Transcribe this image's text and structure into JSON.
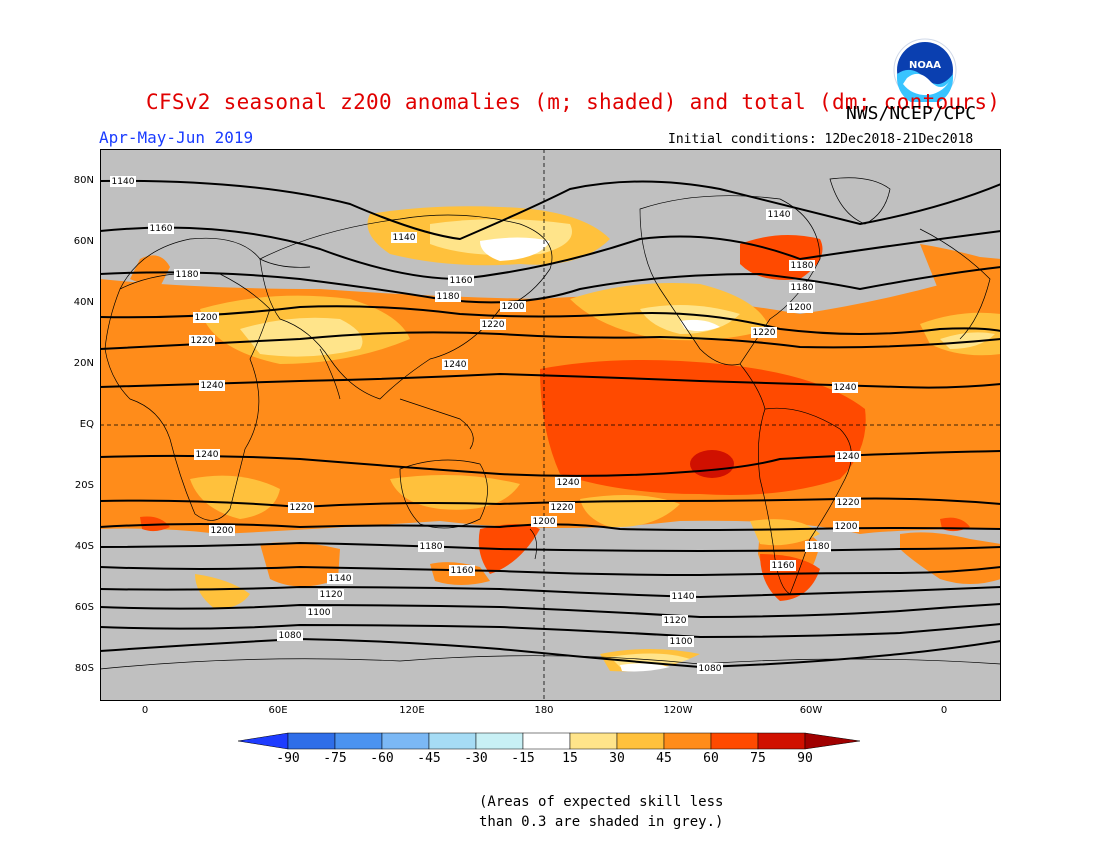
{
  "header": {
    "title": "CFSv2 seasonal z200 anomalies (m; shaded) and total (dm; contours)",
    "agency": "NWS/NCEP/CPC",
    "season": "Apr-May-Jun 2019",
    "initial_conditions": "Initial conditions: 12Dec2018-21Dec2018",
    "logo_text": "NOAA"
  },
  "axes": {
    "lat_labels": [
      "80N",
      "60N",
      "40N",
      "20N",
      "EQ",
      "20S",
      "40S",
      "60S",
      "80S"
    ],
    "lon_labels": [
      "0",
      "60E",
      "120E",
      "180",
      "120W",
      "60W",
      "0"
    ]
  },
  "colorbar": {
    "ticks": [
      "-90",
      "-75",
      "-60",
      "-45",
      "-30",
      "-15",
      "15",
      "30",
      "45",
      "60",
      "75",
      "90"
    ],
    "colors": [
      "#1e3cff",
      "#2f6ee8",
      "#4b93f0",
      "#7bb8f5",
      "#a6dcf5",
      "#c8f0f5",
      "#ffffff",
      "#ffe48a",
      "#ffc13c",
      "#ff8c1a",
      "#ff4a00",
      "#d01000"
    ]
  },
  "note": {
    "line1": "(Areas of expected skill less",
    "line2": "than 0.3 are shaded in grey.)"
  },
  "contour_labels": [
    {
      "id": "c1140a",
      "text": "1140"
    },
    {
      "id": "c1160a",
      "text": "1160"
    },
    {
      "id": "c1140b",
      "text": "1140"
    },
    {
      "id": "c1140c",
      "text": "1140"
    },
    {
      "id": "c1180a",
      "text": "1180"
    },
    {
      "id": "c1160b",
      "text": "1160"
    },
    {
      "id": "c1180b",
      "text": "1180"
    },
    {
      "id": "c1180c",
      "text": "1180"
    },
    {
      "id": "c1180d",
      "text": "1180"
    },
    {
      "id": "c1200a",
      "text": "1200"
    },
    {
      "id": "c1200b",
      "text": "1200"
    },
    {
      "id": "c1200c",
      "text": "1200"
    },
    {
      "id": "c1220a",
      "text": "1220"
    },
    {
      "id": "c1220b",
      "text": "1220"
    },
    {
      "id": "c1220c",
      "text": "1220"
    },
    {
      "id": "c1240a",
      "text": "1240"
    },
    {
      "id": "c1240b",
      "text": "1240"
    },
    {
      "id": "c1240c",
      "text": "1240"
    },
    {
      "id": "c1240d",
      "text": "1240"
    },
    {
      "id": "c1240e",
      "text": "1240"
    },
    {
      "id": "c1240f",
      "text": "1240"
    },
    {
      "id": "c1220d",
      "text": "1220"
    },
    {
      "id": "c1220e",
      "text": "1220"
    },
    {
      "id": "c1220f",
      "text": "1220"
    },
    {
      "id": "c1200d",
      "text": "1200"
    },
    {
      "id": "c1200e",
      "text": "1200"
    },
    {
      "id": "c1200f",
      "text": "1200"
    },
    {
      "id": "c1180e",
      "text": "1180"
    },
    {
      "id": "c1180f",
      "text": "1180"
    },
    {
      "id": "c1160c",
      "text": "1160"
    },
    {
      "id": "c1160d",
      "text": "1160"
    },
    {
      "id": "c1140d",
      "text": "1140"
    },
    {
      "id": "c1140e",
      "text": "1140"
    },
    {
      "id": "c1120a",
      "text": "1120"
    },
    {
      "id": "c1120b",
      "text": "1120"
    },
    {
      "id": "c1100a",
      "text": "1100"
    },
    {
      "id": "c1100b",
      "text": "1100"
    },
    {
      "id": "c1080a",
      "text": "1080"
    },
    {
      "id": "c1080b",
      "text": "1080"
    }
  ]
}
